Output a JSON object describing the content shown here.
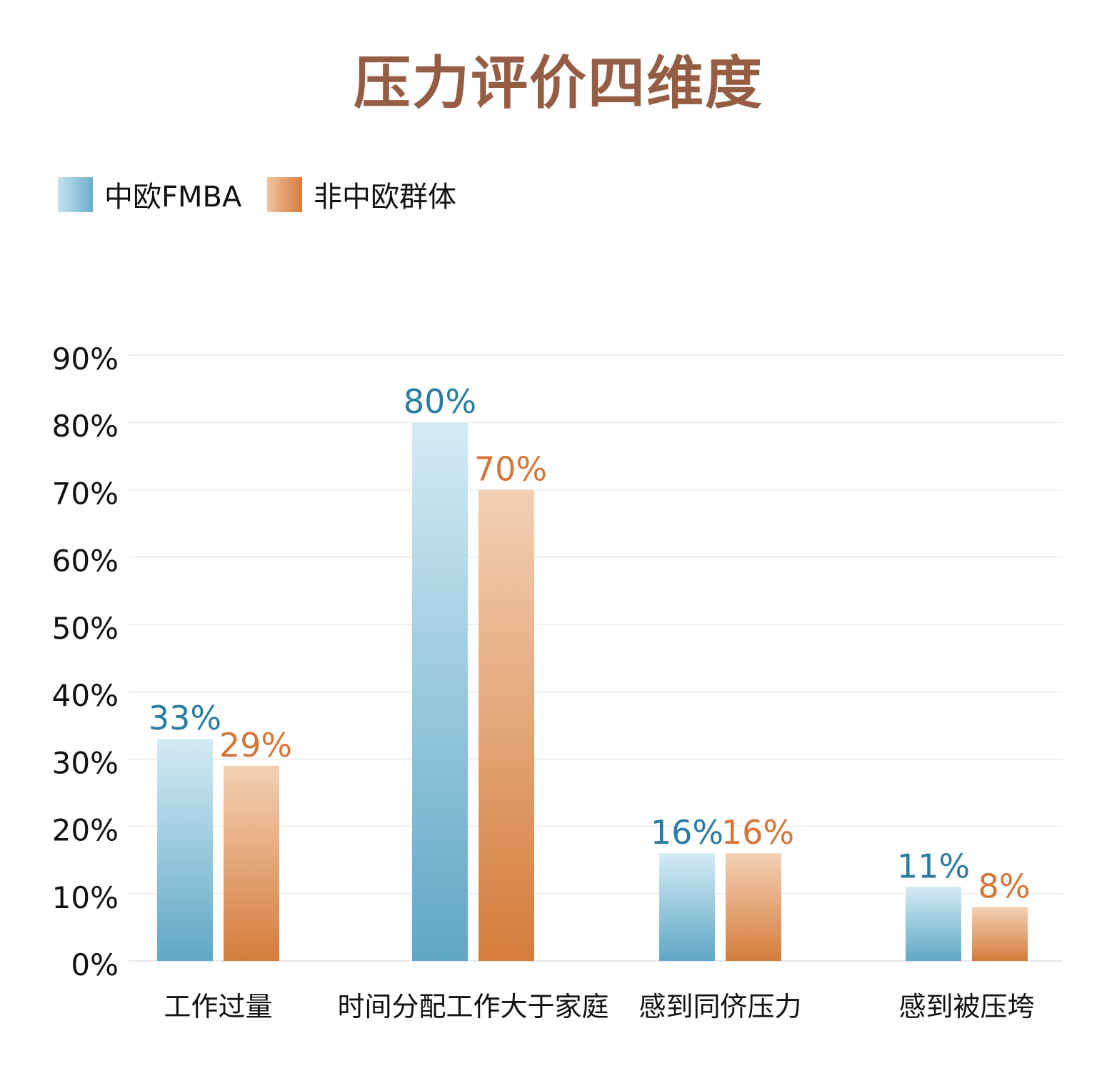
{
  "chart_data": {
    "type": "bar",
    "title": "压力评价四维度",
    "categories": [
      "工作过量",
      "时间分配工作大于家庭",
      "感到同侪压力",
      "感到被压垮"
    ],
    "series": [
      {
        "name": "中欧FMBA",
        "values": [
          33,
          80,
          16,
          11
        ],
        "labels": [
          "33%",
          "80%",
          "16%",
          "11%"
        ],
        "color": "#5fa7c6",
        "color_light": "#d4ebf4",
        "label_color": "#2a7ca0"
      },
      {
        "name": "非中欧群体",
        "values": [
          29,
          70,
          16,
          8
        ],
        "labels": [
          "29%",
          "70%",
          "16%",
          "8%"
        ],
        "color": "#d47c3c",
        "color_light": "#f3d0b4",
        "label_color": "#d4763a"
      }
    ],
    "yticks": [
      "0%",
      "10%",
      "20%",
      "30%",
      "40%",
      "50%",
      "60%",
      "70%",
      "80%",
      "90%"
    ],
    "ylim": [
      0,
      90
    ],
    "xlabel": "",
    "ylabel": "",
    "grid": true,
    "legend": "top-left",
    "title_color": "#955d44"
  }
}
